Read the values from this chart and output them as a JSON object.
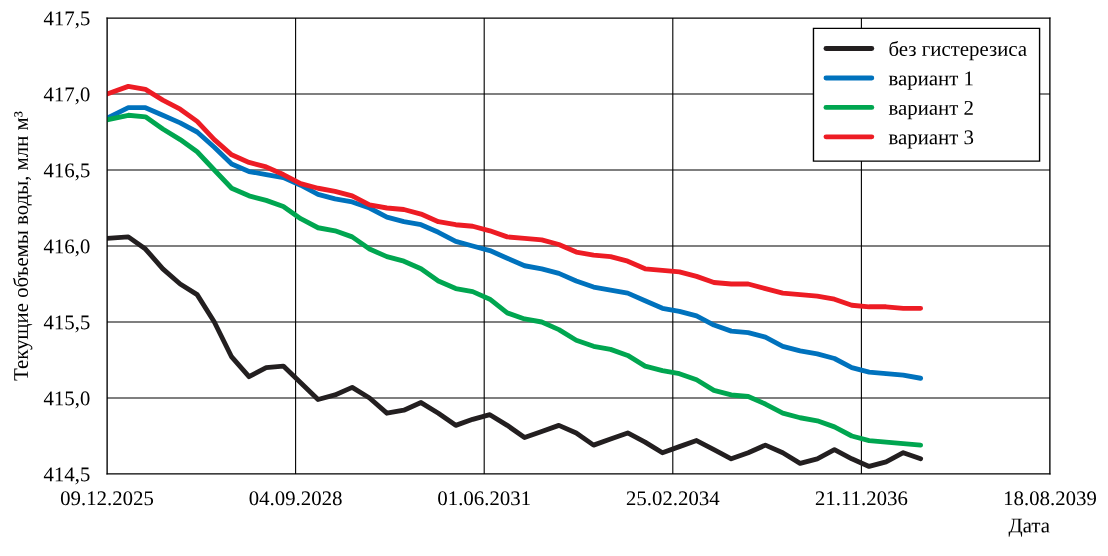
{
  "chart_data": {
    "type": "line",
    "xlabel": "Дата",
    "ylabel": "Текущие объемы воды, млн м³",
    "x": [
      "2025-12-09",
      "2026-04-01",
      "2026-07-01",
      "2026-10-01",
      "2027-01-01",
      "2027-04-01",
      "2027-07-01",
      "2027-10-01",
      "2028-01-01",
      "2028-04-01",
      "2028-07-01",
      "2028-10-01",
      "2029-01-01",
      "2029-04-01",
      "2029-07-01",
      "2029-10-01",
      "2030-01-01",
      "2030-04-01",
      "2030-07-01",
      "2030-10-01",
      "2031-01-01",
      "2031-04-01",
      "2031-07-01",
      "2031-10-01",
      "2032-01-01",
      "2032-04-01",
      "2032-07-01",
      "2032-10-01",
      "2033-01-01",
      "2033-04-01",
      "2033-07-01",
      "2033-10-01",
      "2034-01-01",
      "2034-04-01",
      "2034-07-01",
      "2034-10-01",
      "2035-01-01",
      "2035-04-01",
      "2035-07-01",
      "2035-10-01",
      "2036-01-01",
      "2036-04-01",
      "2036-07-01",
      "2036-10-01",
      "2037-01-01",
      "2037-04-01",
      "2037-07-01",
      "2037-10-01"
    ],
    "series": [
      {
        "name": "без гистерезиса",
        "color": "#231f20",
        "values": [
          416.05,
          416.06,
          415.98,
          415.85,
          415.75,
          415.68,
          415.5,
          415.27,
          415.14,
          415.2,
          415.21,
          415.1,
          414.99,
          415.02,
          415.07,
          415.0,
          414.9,
          414.92,
          414.97,
          414.9,
          414.82,
          414.86,
          414.89,
          414.82,
          414.74,
          414.78,
          414.82,
          414.77,
          414.69,
          414.73,
          414.77,
          414.71,
          414.64,
          414.68,
          414.72,
          414.66,
          414.6,
          414.64,
          414.69,
          414.64,
          414.57,
          414.6,
          414.66,
          414.6,
          414.55,
          414.58,
          414.64,
          414.6
        ]
      },
      {
        "name": "вариант 1",
        "color": "#0072bd",
        "values": [
          416.84,
          416.91,
          416.91,
          416.86,
          416.81,
          416.75,
          416.65,
          416.54,
          416.49,
          416.47,
          416.45,
          416.4,
          416.34,
          416.31,
          416.29,
          416.25,
          416.19,
          416.16,
          416.14,
          416.09,
          416.03,
          416.0,
          415.97,
          415.92,
          415.87,
          415.85,
          415.82,
          415.77,
          415.73,
          415.71,
          415.69,
          415.64,
          415.59,
          415.57,
          415.54,
          415.48,
          415.44,
          415.43,
          415.4,
          415.34,
          415.31,
          415.29,
          415.26,
          415.2,
          415.17,
          415.16,
          415.15,
          415.13
        ]
      },
      {
        "name": "вариант 2",
        "color": "#00a650",
        "values": [
          416.83,
          416.86,
          416.85,
          416.77,
          416.7,
          416.62,
          416.5,
          416.38,
          416.33,
          416.3,
          416.26,
          416.18,
          416.12,
          416.1,
          416.06,
          415.98,
          415.93,
          415.9,
          415.85,
          415.77,
          415.72,
          415.7,
          415.65,
          415.56,
          415.52,
          415.5,
          415.45,
          415.38,
          415.34,
          415.32,
          415.28,
          415.21,
          415.18,
          415.16,
          415.12,
          415.05,
          415.02,
          415.01,
          414.96,
          414.9,
          414.87,
          414.85,
          414.81,
          414.75,
          414.72,
          414.71,
          414.7,
          414.69
        ]
      },
      {
        "name": "вариант 3",
        "color": "#ed1c24",
        "values": [
          417.0,
          417.05,
          417.03,
          416.96,
          416.9,
          416.82,
          416.7,
          416.6,
          416.55,
          416.52,
          416.47,
          416.41,
          416.38,
          416.36,
          416.33,
          416.27,
          416.25,
          416.24,
          416.21,
          416.16,
          416.14,
          416.13,
          416.1,
          416.06,
          416.05,
          416.04,
          416.01,
          415.96,
          415.94,
          415.93,
          415.9,
          415.85,
          415.84,
          415.83,
          415.8,
          415.76,
          415.75,
          415.75,
          415.72,
          415.69,
          415.68,
          415.67,
          415.65,
          415.61,
          415.6,
          415.6,
          415.59,
          415.59
        ]
      }
    ],
    "xlim": [
      "2025-12-09",
      "2039-08-18"
    ],
    "xticks": [
      {
        "value": "2025-12-09",
        "label": "09.12.2025"
      },
      {
        "value": "2028-09-04",
        "label": "04.09.2028"
      },
      {
        "value": "2031-06-01",
        "label": "01.06.2031"
      },
      {
        "value": "2034-02-25",
        "label": "25.02.2034"
      },
      {
        "value": "2036-11-21",
        "label": "21.11.2036"
      },
      {
        "value": "2039-08-18",
        "label": "18.08.2039"
      }
    ],
    "ylim": [
      414.5,
      417.5
    ],
    "yticks": [
      {
        "value": 414.5,
        "label": "414,5"
      },
      {
        "value": 415.0,
        "label": "415,0"
      },
      {
        "value": 415.5,
        "label": "415,5"
      },
      {
        "value": 416.0,
        "label": "416,0"
      },
      {
        "value": 416.5,
        "label": "416,5"
      },
      {
        "value": 417.0,
        "label": "417,0"
      },
      {
        "value": 417.5,
        "label": "417,5"
      }
    ],
    "grid": true,
    "legend": "top right",
    "marker": "none",
    "line_style": "solid"
  }
}
